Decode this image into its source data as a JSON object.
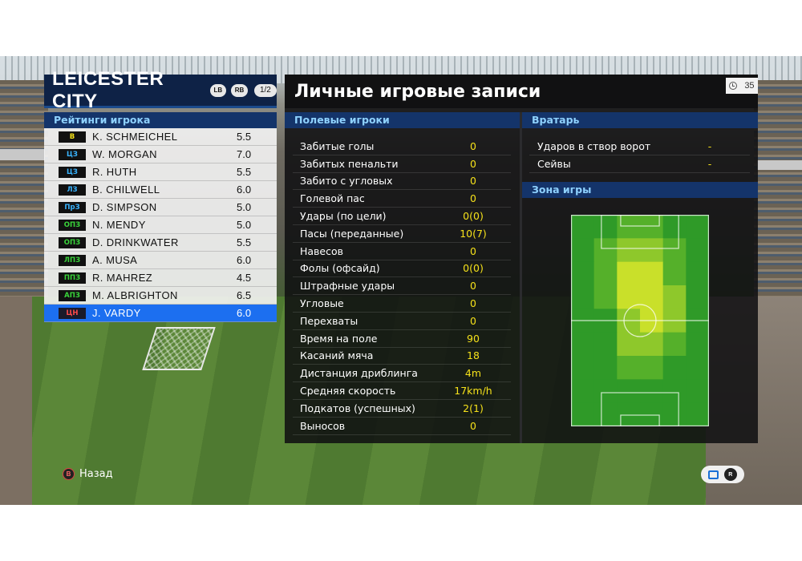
{
  "team": {
    "name": "LEICESTER CITY",
    "lb_label": "LB",
    "rb_label": "RB",
    "page": "1/2"
  },
  "ratings_header": "Рейтинги игрока",
  "players": [
    {
      "pos": "В",
      "name": "K. SCHMEICHEL",
      "rating": "5.5",
      "pos_color": "#f5e11a"
    },
    {
      "pos": "ЦЗ",
      "name": "W. MORGAN",
      "rating": "7.0",
      "pos_color": "#39b4ff"
    },
    {
      "pos": "ЦЗ",
      "name": "R. HUTH",
      "rating": "5.5",
      "pos_color": "#39b4ff"
    },
    {
      "pos": "ЛЗ",
      "name": "B. CHILWELL",
      "rating": "6.0",
      "pos_color": "#39b4ff"
    },
    {
      "pos": "ПрЗ",
      "name": "D. SIMPSON",
      "rating": "5.0",
      "pos_color": "#39b4ff"
    },
    {
      "pos": "ОПЗ",
      "name": "N. MENDY",
      "rating": "5.0",
      "pos_color": "#39d43a"
    },
    {
      "pos": "ОПЗ",
      "name": "D. DRINKWATER",
      "rating": "5.5",
      "pos_color": "#39d43a"
    },
    {
      "pos": "ЛПЗ",
      "name": "A. MUSA",
      "rating": "6.0",
      "pos_color": "#39d43a"
    },
    {
      "pos": "ППЗ",
      "name": "R. MAHREZ",
      "rating": "4.5",
      "pos_color": "#39d43a"
    },
    {
      "pos": "АПЗ",
      "name": "M. ALBRIGHTON",
      "rating": "6.5",
      "pos_color": "#39d43a"
    },
    {
      "pos": "ЦН",
      "name": "J. VARDY",
      "rating": "6.0",
      "pos_color": "#ff4a4a",
      "selected": true
    }
  ],
  "main_title": "Личные игровые записи",
  "timer_value": "35",
  "field_players_header": "Полевые игроки",
  "stats": [
    {
      "label": "Забитые голы",
      "value": "0"
    },
    {
      "label": "Забитых пенальти",
      "value": "0"
    },
    {
      "label": "Забито с угловых",
      "value": "0"
    },
    {
      "label": "Голевой пас",
      "value": "0"
    },
    {
      "label": "Удары (по цели)",
      "value": "0(0)"
    },
    {
      "label": "Пасы (переданные)",
      "value": "10(7)"
    },
    {
      "label": "Навесов",
      "value": "0"
    },
    {
      "label": "Фолы (офсайд)",
      "value": "0(0)"
    },
    {
      "label": "Штрафные удары",
      "value": "0"
    },
    {
      "label": "Угловые",
      "value": "0"
    },
    {
      "label": "Перехваты",
      "value": "0"
    },
    {
      "label": "Время на поле",
      "value": "90"
    },
    {
      "label": "Касаний мяча",
      "value": "18"
    },
    {
      "label": "Дистанция дриблинга",
      "value": "4m"
    },
    {
      "label": "Средняя скорость",
      "value": "17km/h"
    },
    {
      "label": "Подкатов (успешных)",
      "value": "2(1)"
    },
    {
      "label": "Выносов",
      "value": "0"
    }
  ],
  "goalkeeper_header": "Вратарь",
  "gk_stats": [
    {
      "label": "Ударов в створ ворот",
      "value": "-"
    },
    {
      "label": "Сейвы",
      "value": "-"
    }
  ],
  "zone_header": "Зона игры",
  "heatmap": {
    "cols": 6,
    "rows": 9,
    "intensity": [
      [
        0,
        0,
        1,
        1,
        0,
        0
      ],
      [
        0,
        1,
        2,
        2,
        1,
        0
      ],
      [
        0,
        1,
        3,
        3,
        1,
        0
      ],
      [
        0,
        1,
        3,
        3,
        2,
        0
      ],
      [
        0,
        0,
        2,
        3,
        2,
        0
      ],
      [
        0,
        0,
        2,
        2,
        1,
        0
      ],
      [
        0,
        0,
        1,
        1,
        0,
        0
      ],
      [
        0,
        0,
        0,
        0,
        0,
        0
      ],
      [
        0,
        0,
        0,
        0,
        0,
        0
      ]
    ],
    "colors": [
      "#2f9a28",
      "#55b02a",
      "#8ec82b",
      "#c9e02a"
    ]
  },
  "footer": {
    "back_button": "B",
    "back_label": "Назад",
    "rs_label": "R"
  }
}
